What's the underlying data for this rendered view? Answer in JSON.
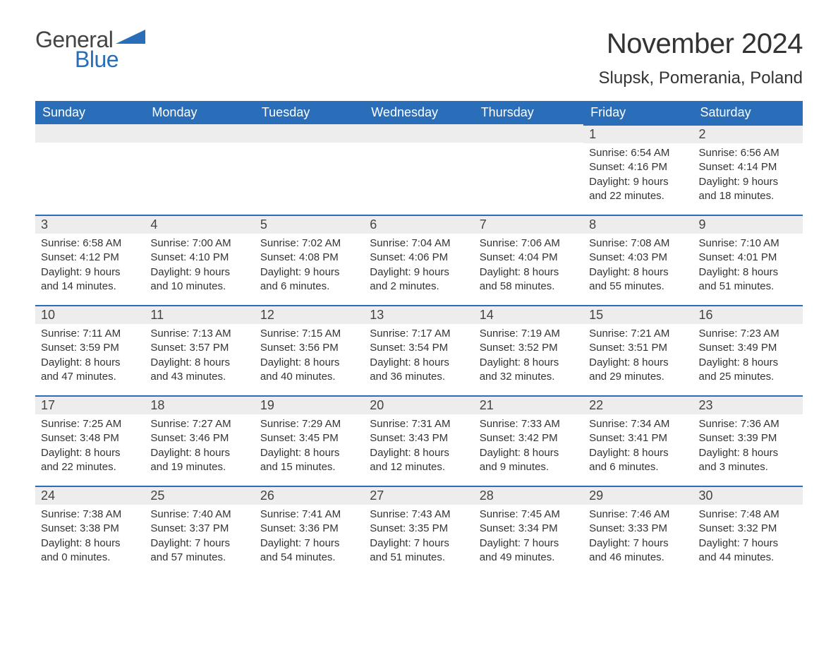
{
  "brand": {
    "part1": "General",
    "part2": "Blue",
    "triangle_color": "#2a6db8",
    "text_color_general": "#444444",
    "text_color_blue": "#2a6db8"
  },
  "title": "November 2024",
  "location": "Slupsk, Pomerania, Poland",
  "colors": {
    "header_bg": "#2a6db8",
    "header_text": "#ffffff",
    "daynum_bg": "#ededed",
    "daynum_border": "#2a6db8",
    "body_bg": "#ffffff",
    "text": "#333333"
  },
  "weekdays": [
    "Sunday",
    "Monday",
    "Tuesday",
    "Wednesday",
    "Thursday",
    "Friday",
    "Saturday"
  ],
  "weeks": [
    [
      null,
      null,
      null,
      null,
      null,
      {
        "n": "1",
        "sunrise": "6:54 AM",
        "sunset": "4:16 PM",
        "dl1": "Daylight: 9 hours",
        "dl2": "and 22 minutes."
      },
      {
        "n": "2",
        "sunrise": "6:56 AM",
        "sunset": "4:14 PM",
        "dl1": "Daylight: 9 hours",
        "dl2": "and 18 minutes."
      }
    ],
    [
      {
        "n": "3",
        "sunrise": "6:58 AM",
        "sunset": "4:12 PM",
        "dl1": "Daylight: 9 hours",
        "dl2": "and 14 minutes."
      },
      {
        "n": "4",
        "sunrise": "7:00 AM",
        "sunset": "4:10 PM",
        "dl1": "Daylight: 9 hours",
        "dl2": "and 10 minutes."
      },
      {
        "n": "5",
        "sunrise": "7:02 AM",
        "sunset": "4:08 PM",
        "dl1": "Daylight: 9 hours",
        "dl2": "and 6 minutes."
      },
      {
        "n": "6",
        "sunrise": "7:04 AM",
        "sunset": "4:06 PM",
        "dl1": "Daylight: 9 hours",
        "dl2": "and 2 minutes."
      },
      {
        "n": "7",
        "sunrise": "7:06 AM",
        "sunset": "4:04 PM",
        "dl1": "Daylight: 8 hours",
        "dl2": "and 58 minutes."
      },
      {
        "n": "8",
        "sunrise": "7:08 AM",
        "sunset": "4:03 PM",
        "dl1": "Daylight: 8 hours",
        "dl2": "and 55 minutes."
      },
      {
        "n": "9",
        "sunrise": "7:10 AM",
        "sunset": "4:01 PM",
        "dl1": "Daylight: 8 hours",
        "dl2": "and 51 minutes."
      }
    ],
    [
      {
        "n": "10",
        "sunrise": "7:11 AM",
        "sunset": "3:59 PM",
        "dl1": "Daylight: 8 hours",
        "dl2": "and 47 minutes."
      },
      {
        "n": "11",
        "sunrise": "7:13 AM",
        "sunset": "3:57 PM",
        "dl1": "Daylight: 8 hours",
        "dl2": "and 43 minutes."
      },
      {
        "n": "12",
        "sunrise": "7:15 AM",
        "sunset": "3:56 PM",
        "dl1": "Daylight: 8 hours",
        "dl2": "and 40 minutes."
      },
      {
        "n": "13",
        "sunrise": "7:17 AM",
        "sunset": "3:54 PM",
        "dl1": "Daylight: 8 hours",
        "dl2": "and 36 minutes."
      },
      {
        "n": "14",
        "sunrise": "7:19 AM",
        "sunset": "3:52 PM",
        "dl1": "Daylight: 8 hours",
        "dl2": "and 32 minutes."
      },
      {
        "n": "15",
        "sunrise": "7:21 AM",
        "sunset": "3:51 PM",
        "dl1": "Daylight: 8 hours",
        "dl2": "and 29 minutes."
      },
      {
        "n": "16",
        "sunrise": "7:23 AM",
        "sunset": "3:49 PM",
        "dl1": "Daylight: 8 hours",
        "dl2": "and 25 minutes."
      }
    ],
    [
      {
        "n": "17",
        "sunrise": "7:25 AM",
        "sunset": "3:48 PM",
        "dl1": "Daylight: 8 hours",
        "dl2": "and 22 minutes."
      },
      {
        "n": "18",
        "sunrise": "7:27 AM",
        "sunset": "3:46 PM",
        "dl1": "Daylight: 8 hours",
        "dl2": "and 19 minutes."
      },
      {
        "n": "19",
        "sunrise": "7:29 AM",
        "sunset": "3:45 PM",
        "dl1": "Daylight: 8 hours",
        "dl2": "and 15 minutes."
      },
      {
        "n": "20",
        "sunrise": "7:31 AM",
        "sunset": "3:43 PM",
        "dl1": "Daylight: 8 hours",
        "dl2": "and 12 minutes."
      },
      {
        "n": "21",
        "sunrise": "7:33 AM",
        "sunset": "3:42 PM",
        "dl1": "Daylight: 8 hours",
        "dl2": "and 9 minutes."
      },
      {
        "n": "22",
        "sunrise": "7:34 AM",
        "sunset": "3:41 PM",
        "dl1": "Daylight: 8 hours",
        "dl2": "and 6 minutes."
      },
      {
        "n": "23",
        "sunrise": "7:36 AM",
        "sunset": "3:39 PM",
        "dl1": "Daylight: 8 hours",
        "dl2": "and 3 minutes."
      }
    ],
    [
      {
        "n": "24",
        "sunrise": "7:38 AM",
        "sunset": "3:38 PM",
        "dl1": "Daylight: 8 hours",
        "dl2": "and 0 minutes."
      },
      {
        "n": "25",
        "sunrise": "7:40 AM",
        "sunset": "3:37 PM",
        "dl1": "Daylight: 7 hours",
        "dl2": "and 57 minutes."
      },
      {
        "n": "26",
        "sunrise": "7:41 AM",
        "sunset": "3:36 PM",
        "dl1": "Daylight: 7 hours",
        "dl2": "and 54 minutes."
      },
      {
        "n": "27",
        "sunrise": "7:43 AM",
        "sunset": "3:35 PM",
        "dl1": "Daylight: 7 hours",
        "dl2": "and 51 minutes."
      },
      {
        "n": "28",
        "sunrise": "7:45 AM",
        "sunset": "3:34 PM",
        "dl1": "Daylight: 7 hours",
        "dl2": "and 49 minutes."
      },
      {
        "n": "29",
        "sunrise": "7:46 AM",
        "sunset": "3:33 PM",
        "dl1": "Daylight: 7 hours",
        "dl2": "and 46 minutes."
      },
      {
        "n": "30",
        "sunrise": "7:48 AM",
        "sunset": "3:32 PM",
        "dl1": "Daylight: 7 hours",
        "dl2": "and 44 minutes."
      }
    ]
  ],
  "labels": {
    "sunrise_prefix": "Sunrise: ",
    "sunset_prefix": "Sunset: "
  }
}
